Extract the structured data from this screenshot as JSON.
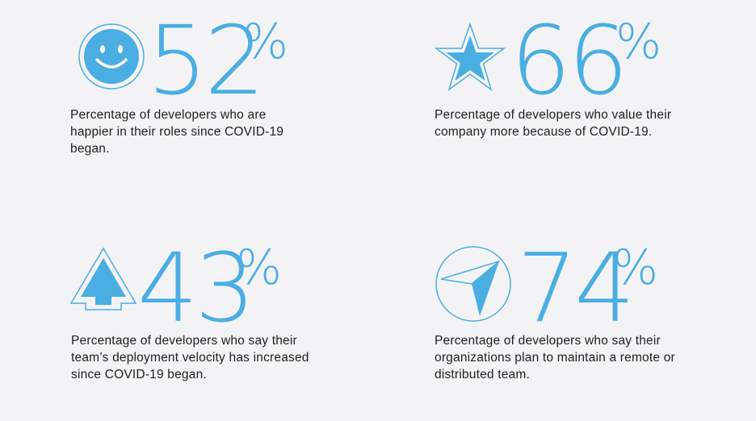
{
  "accent_color": "#4aaee3",
  "stats": [
    {
      "icon": "smiley-face-icon",
      "value": "52",
      "suffix": "%",
      "description": "Percentage of developers who are happier in their roles since COVID-19 began."
    },
    {
      "icon": "star-icon",
      "value": "66",
      "suffix": "%",
      "description": "Percentage of developers who value their company more because of COVID-19."
    },
    {
      "icon": "arrow-up-icon",
      "value": "43",
      "suffix": "%",
      "description": "Percentage of developers who say their team’s deployment velocity has increased since COVID-19 began."
    },
    {
      "icon": "compass-pointer-icon",
      "value": "74",
      "suffix": "%",
      "description": "Percentage of developers who say their organizations plan to maintain a remote or distributed team."
    }
  ]
}
